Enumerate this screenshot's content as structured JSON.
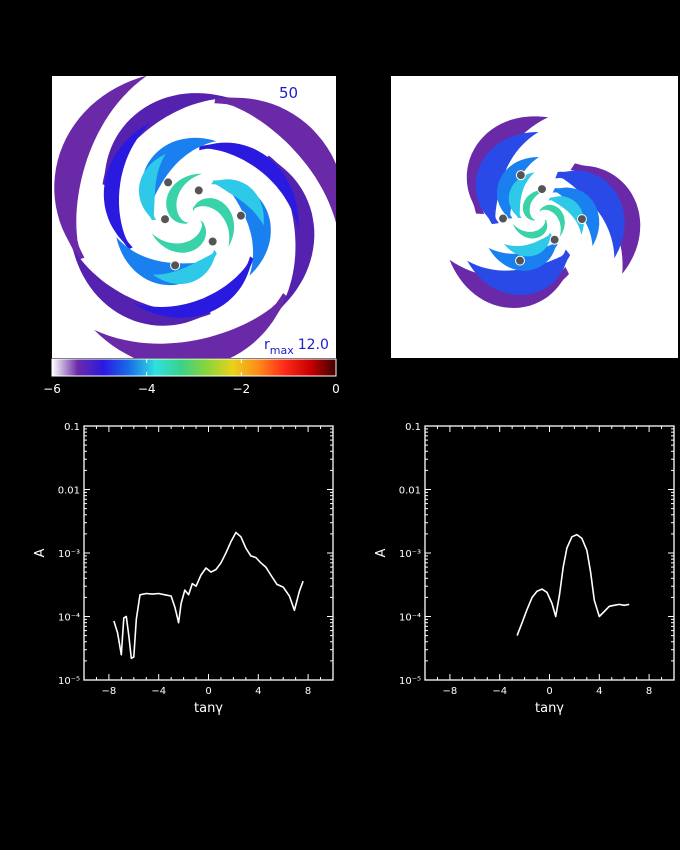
{
  "images": [
    {
      "frame_label": "50",
      "rmax_label": "r",
      "rmax_sub": "max",
      "rmax_value": "12.0",
      "planets": 6,
      "arms": 3
    },
    {
      "planets": 6,
      "arms": 3
    }
  ],
  "colorbar": {
    "ticks": [
      "−6",
      "−4",
      "−2",
      "0"
    ],
    "range": [
      -6,
      0
    ],
    "colors": [
      "#ffffff",
      "#6a2aa8",
      "#2a1ae0",
      "#1a6ee8",
      "#2ee0e0",
      "#3ad28a",
      "#8ad43a",
      "#e8d21a",
      "#ff8a1a",
      "#ff2a1a",
      "#c80000",
      "#400000"
    ]
  },
  "colors": {
    "background": "#000000",
    "curve": "#ffffff",
    "frame_label": "#1c1cc8",
    "planet": "#555555"
  },
  "chart_data": [
    {
      "type": "line",
      "xlabel": "tanγ",
      "ylabel": "A",
      "xlim": [
        -10,
        10
      ],
      "ylim": [
        1e-05,
        0.1
      ],
      "yscale": "log",
      "xticks": [
        "−8",
        "−4",
        "0",
        "4",
        "8"
      ],
      "yticks": [
        "10⁻⁵",
        "10⁻⁴",
        "10⁻³",
        "0.01",
        "0.1"
      ],
      "series": [
        {
          "x": [
            -7.6,
            -7.3,
            -7.0,
            -6.8,
            -6.6,
            -6.4,
            -6.2,
            -6.0,
            -5.8,
            -5.5,
            -5.0,
            -4.5,
            -4.0,
            -3.5,
            -3.0,
            -2.7,
            -2.4,
            -2.2,
            -1.9,
            -1.6,
            -1.3,
            -1.0,
            -0.6,
            -0.2,
            0.2,
            0.6,
            1.0,
            1.4,
            1.8,
            2.2,
            2.6,
            3.0,
            3.4,
            3.8,
            4.2,
            4.6,
            5.0,
            5.5,
            6.0,
            6.5,
            6.9,
            7.3,
            7.6
          ],
          "y": [
            8.5e-05,
            5.5e-05,
            2.5e-05,
            9.5e-05,
            0.0001,
            5e-05,
            2.2e-05,
            2.3e-05,
            9e-05,
            0.00022,
            0.00023,
            0.000225,
            0.00023,
            0.00022,
            0.00021,
            0.00014,
            8e-05,
            0.00016,
            0.00026,
            0.00022,
            0.00033,
            0.0003,
            0.00045,
            0.00058,
            0.0005,
            0.00055,
            0.0007,
            0.001,
            0.0015,
            0.0021,
            0.0018,
            0.0012,
            0.0009,
            0.00085,
            0.0007,
            0.0006,
            0.00045,
            0.00032,
            0.00029,
            0.00021,
            0.000125,
            0.00025,
            0.00036
          ]
        }
      ]
    },
    {
      "type": "line",
      "xlabel": "tanγ",
      "ylabel": "A",
      "xlim": [
        -10,
        10
      ],
      "ylim": [
        1e-05,
        0.1
      ],
      "yscale": "log",
      "xticks": [
        "−8",
        "−4",
        "0",
        "4",
        "8"
      ],
      "yticks": [
        "10⁻⁵",
        "10⁻⁴",
        "10⁻³",
        "0.01",
        "0.1"
      ],
      "series": [
        {
          "x": [
            -2.6,
            -2.2,
            -1.8,
            -1.4,
            -1.0,
            -0.6,
            -0.2,
            0.2,
            0.5,
            0.8,
            1.1,
            1.4,
            1.8,
            2.2,
            2.6,
            3.0,
            3.3,
            3.6,
            4.0,
            4.4,
            4.8,
            5.2,
            5.6,
            6.0,
            6.4
          ],
          "y": [
            5e-05,
            8e-05,
            0.00013,
            0.0002,
            0.00025,
            0.00027,
            0.00024,
            0.00016,
            0.0001,
            0.00022,
            0.0006,
            0.0012,
            0.0018,
            0.00195,
            0.0017,
            0.0011,
            0.0005,
            0.00018,
            0.0001,
            0.00012,
            0.000145,
            0.00015,
            0.000155,
            0.00015,
            0.000155
          ]
        }
      ]
    }
  ]
}
